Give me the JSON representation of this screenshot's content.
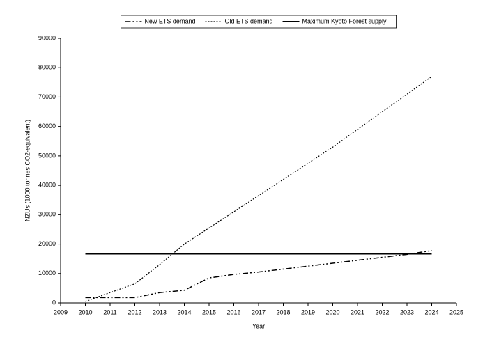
{
  "chart_data": {
    "type": "line",
    "x_label": "Year",
    "y_label": "NZUs (1000 tonnes CO2-equivalent)",
    "xlim": [
      2009,
      2025
    ],
    "xticks": [
      2009,
      2010,
      2011,
      2012,
      2013,
      2014,
      2015,
      2016,
      2017,
      2018,
      2019,
      2020,
      2021,
      2022,
      2023,
      2024,
      2025
    ],
    "ylim": [
      0,
      90000
    ],
    "yticks": [
      0,
      10000,
      20000,
      30000,
      40000,
      50000,
      60000,
      70000,
      80000,
      90000
    ],
    "grid": false,
    "legend": "top",
    "series": [
      {
        "name": "New ETS demand",
        "color": "#000000",
        "style": "dash-dot",
        "x": [
          2010,
          2011,
          2012,
          2013,
          2014,
          2015,
          2016,
          2017,
          2018,
          2019,
          2020,
          2021,
          2022,
          2023,
          2024
        ],
        "values": [
          1800,
          1800,
          1800,
          3500,
          4300,
          8500,
          9700,
          10500,
          11500,
          12500,
          13500,
          14500,
          15500,
          16500,
          17800
        ]
      },
      {
        "name": "Old ETS demand",
        "color": "#000000",
        "style": "dotted",
        "x": [
          2010,
          2011,
          2012,
          2013,
          2014,
          2015,
          2016,
          2017,
          2018,
          2019,
          2020,
          2021,
          2022,
          2023,
          2024
        ],
        "values": [
          500,
          3500,
          6500,
          13000,
          20000,
          25500,
          31000,
          36500,
          42000,
          47500,
          53000,
          59000,
          65000,
          71000,
          77000
        ]
      },
      {
        "name": "Maximum Kyoto Forest supply",
        "color": "#000000",
        "style": "solid",
        "x": [
          2010,
          2024
        ],
        "values": [
          16700,
          16700
        ]
      }
    ]
  }
}
